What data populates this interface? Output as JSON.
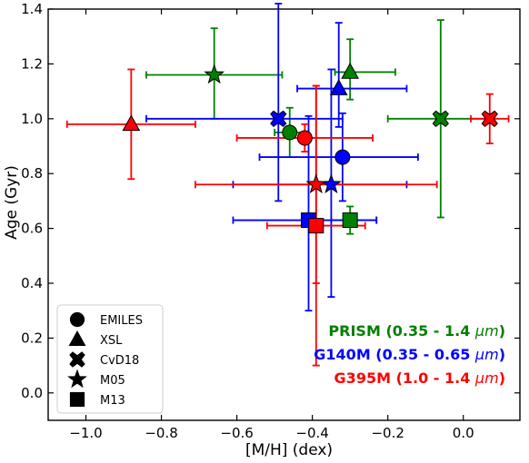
{
  "chart_data": {
    "type": "scatter",
    "xlabel": "[M/H] (dex)",
    "ylabel": "Age (Gyr)",
    "xlim": [
      -1.1,
      0.15
    ],
    "ylim": [
      -0.1,
      1.4
    ],
    "xticks": [
      -1.0,
      -0.8,
      -0.6,
      -0.4,
      -0.2,
      0.0
    ],
    "xtick_labels": [
      "−1.0",
      "−0.8",
      "−0.6",
      "−0.4",
      "−0.2",
      "0.0"
    ],
    "yticks": [
      0.0,
      0.2,
      0.4,
      0.6,
      0.8,
      1.0,
      1.2,
      1.4
    ],
    "ytick_labels": [
      "0.0",
      "0.2",
      "0.4",
      "0.6",
      "0.8",
      "1.0",
      "1.2",
      "1.4"
    ],
    "grid": false,
    "legend": {
      "placement": "lower-left",
      "entries": [
        {
          "label": "EMILES",
          "marker": "circle"
        },
        {
          "label": "XSL",
          "marker": "triangle"
        },
        {
          "label": "CvD18",
          "marker": "x-cross"
        },
        {
          "label": "M05",
          "marker": "star"
        },
        {
          "label": "M13",
          "marker": "square"
        }
      ]
    },
    "annotations": [
      {
        "name": "PRISM",
        "text": "PRISM (0.35 - 1.4 ",
        "unit": "μm",
        "close": ")",
        "color": "#008000"
      },
      {
        "name": "G140M",
        "text": "G140M (0.35 - 0.65 ",
        "unit": "μm",
        "close": ")",
        "color": "#0000ff"
      },
      {
        "name": "G395M",
        "text": "G395M (1.0 - 1.4 ",
        "unit": "μm",
        "close": ")",
        "color": "#ff0000"
      }
    ],
    "series": [
      {
        "instrument": "PRISM",
        "color": "#008000",
        "points": [
          {
            "model": "EMILES",
            "marker": "circle",
            "x": -0.46,
            "y": 0.95,
            "xerr": [
              0.04,
              0.05
            ],
            "yerr": [
              0.09,
              0.09
            ]
          },
          {
            "model": "XSL",
            "marker": "triangle",
            "x": -0.3,
            "y": 1.17,
            "xerr": [
              0.04,
              0.12
            ],
            "yerr": [
              0.1,
              0.12
            ]
          },
          {
            "model": "CvD18",
            "marker": "x-cross",
            "x": -0.06,
            "y": 1.0,
            "xerr": [
              0.14,
              0.12
            ],
            "yerr": [
              0.36,
              0.36
            ]
          },
          {
            "model": "M05",
            "marker": "star",
            "x": -0.66,
            "y": 1.16,
            "xerr": [
              0.18,
              0.18
            ],
            "yerr": [
              0.16,
              0.17
            ]
          },
          {
            "model": "M13",
            "marker": "square",
            "x": -0.3,
            "y": 0.63,
            "xerr": [
              0.05,
              0.07
            ],
            "yerr": [
              0.05,
              0.05
            ]
          }
        ]
      },
      {
        "instrument": "G140M",
        "color": "#0000ff",
        "points": [
          {
            "model": "EMILES",
            "marker": "circle",
            "x": -0.32,
            "y": 0.86,
            "xerr": [
              0.22,
              0.2
            ],
            "yerr": [
              0.16,
              0.16
            ]
          },
          {
            "model": "XSL",
            "marker": "triangle",
            "x": -0.33,
            "y": 1.11,
            "xerr": [
              0.11,
              0.18
            ],
            "yerr": [
              0.14,
              0.24
            ]
          },
          {
            "model": "CvD18",
            "marker": "x-cross",
            "x": -0.49,
            "y": 1.0,
            "xerr": [
              0.35,
              0.17
            ],
            "yerr": [
              0.3,
              0.42
            ]
          },
          {
            "model": "M05",
            "marker": "star",
            "x": -0.35,
            "y": 0.76,
            "xerr": [
              0.26,
              0.2
            ],
            "yerr": [
              0.41,
              0.42
            ]
          },
          {
            "model": "M13",
            "marker": "square",
            "x": -0.41,
            "y": 0.63,
            "xerr": [
              0.2,
              0.18
            ],
            "yerr": [
              0.33,
              0.38
            ]
          }
        ]
      },
      {
        "instrument": "G395M",
        "color": "#ff0000",
        "points": [
          {
            "model": "EMILES",
            "marker": "circle",
            "x": -0.42,
            "y": 0.93,
            "xerr": [
              0.18,
              0.18
            ],
            "yerr": [
              0.05,
              0.05
            ]
          },
          {
            "model": "XSL",
            "marker": "triangle",
            "x": -0.88,
            "y": 0.98,
            "xerr": [
              0.17,
              0.17
            ],
            "yerr": [
              0.2,
              0.2
            ]
          },
          {
            "model": "CvD18",
            "marker": "x-cross",
            "x": 0.07,
            "y": 1.0,
            "xerr": [
              0.05,
              0.05
            ],
            "yerr": [
              0.09,
              0.09
            ]
          },
          {
            "model": "M05",
            "marker": "star",
            "x": -0.39,
            "y": 0.76,
            "xerr": [
              0.32,
              0.32
            ],
            "yerr": [
              0.36,
              0.36
            ]
          },
          {
            "model": "M13",
            "marker": "square",
            "x": -0.39,
            "y": 0.61,
            "xerr": [
              0.13,
              0.13
            ],
            "yerr": [
              0.51,
              0.51
            ]
          }
        ]
      }
    ]
  }
}
